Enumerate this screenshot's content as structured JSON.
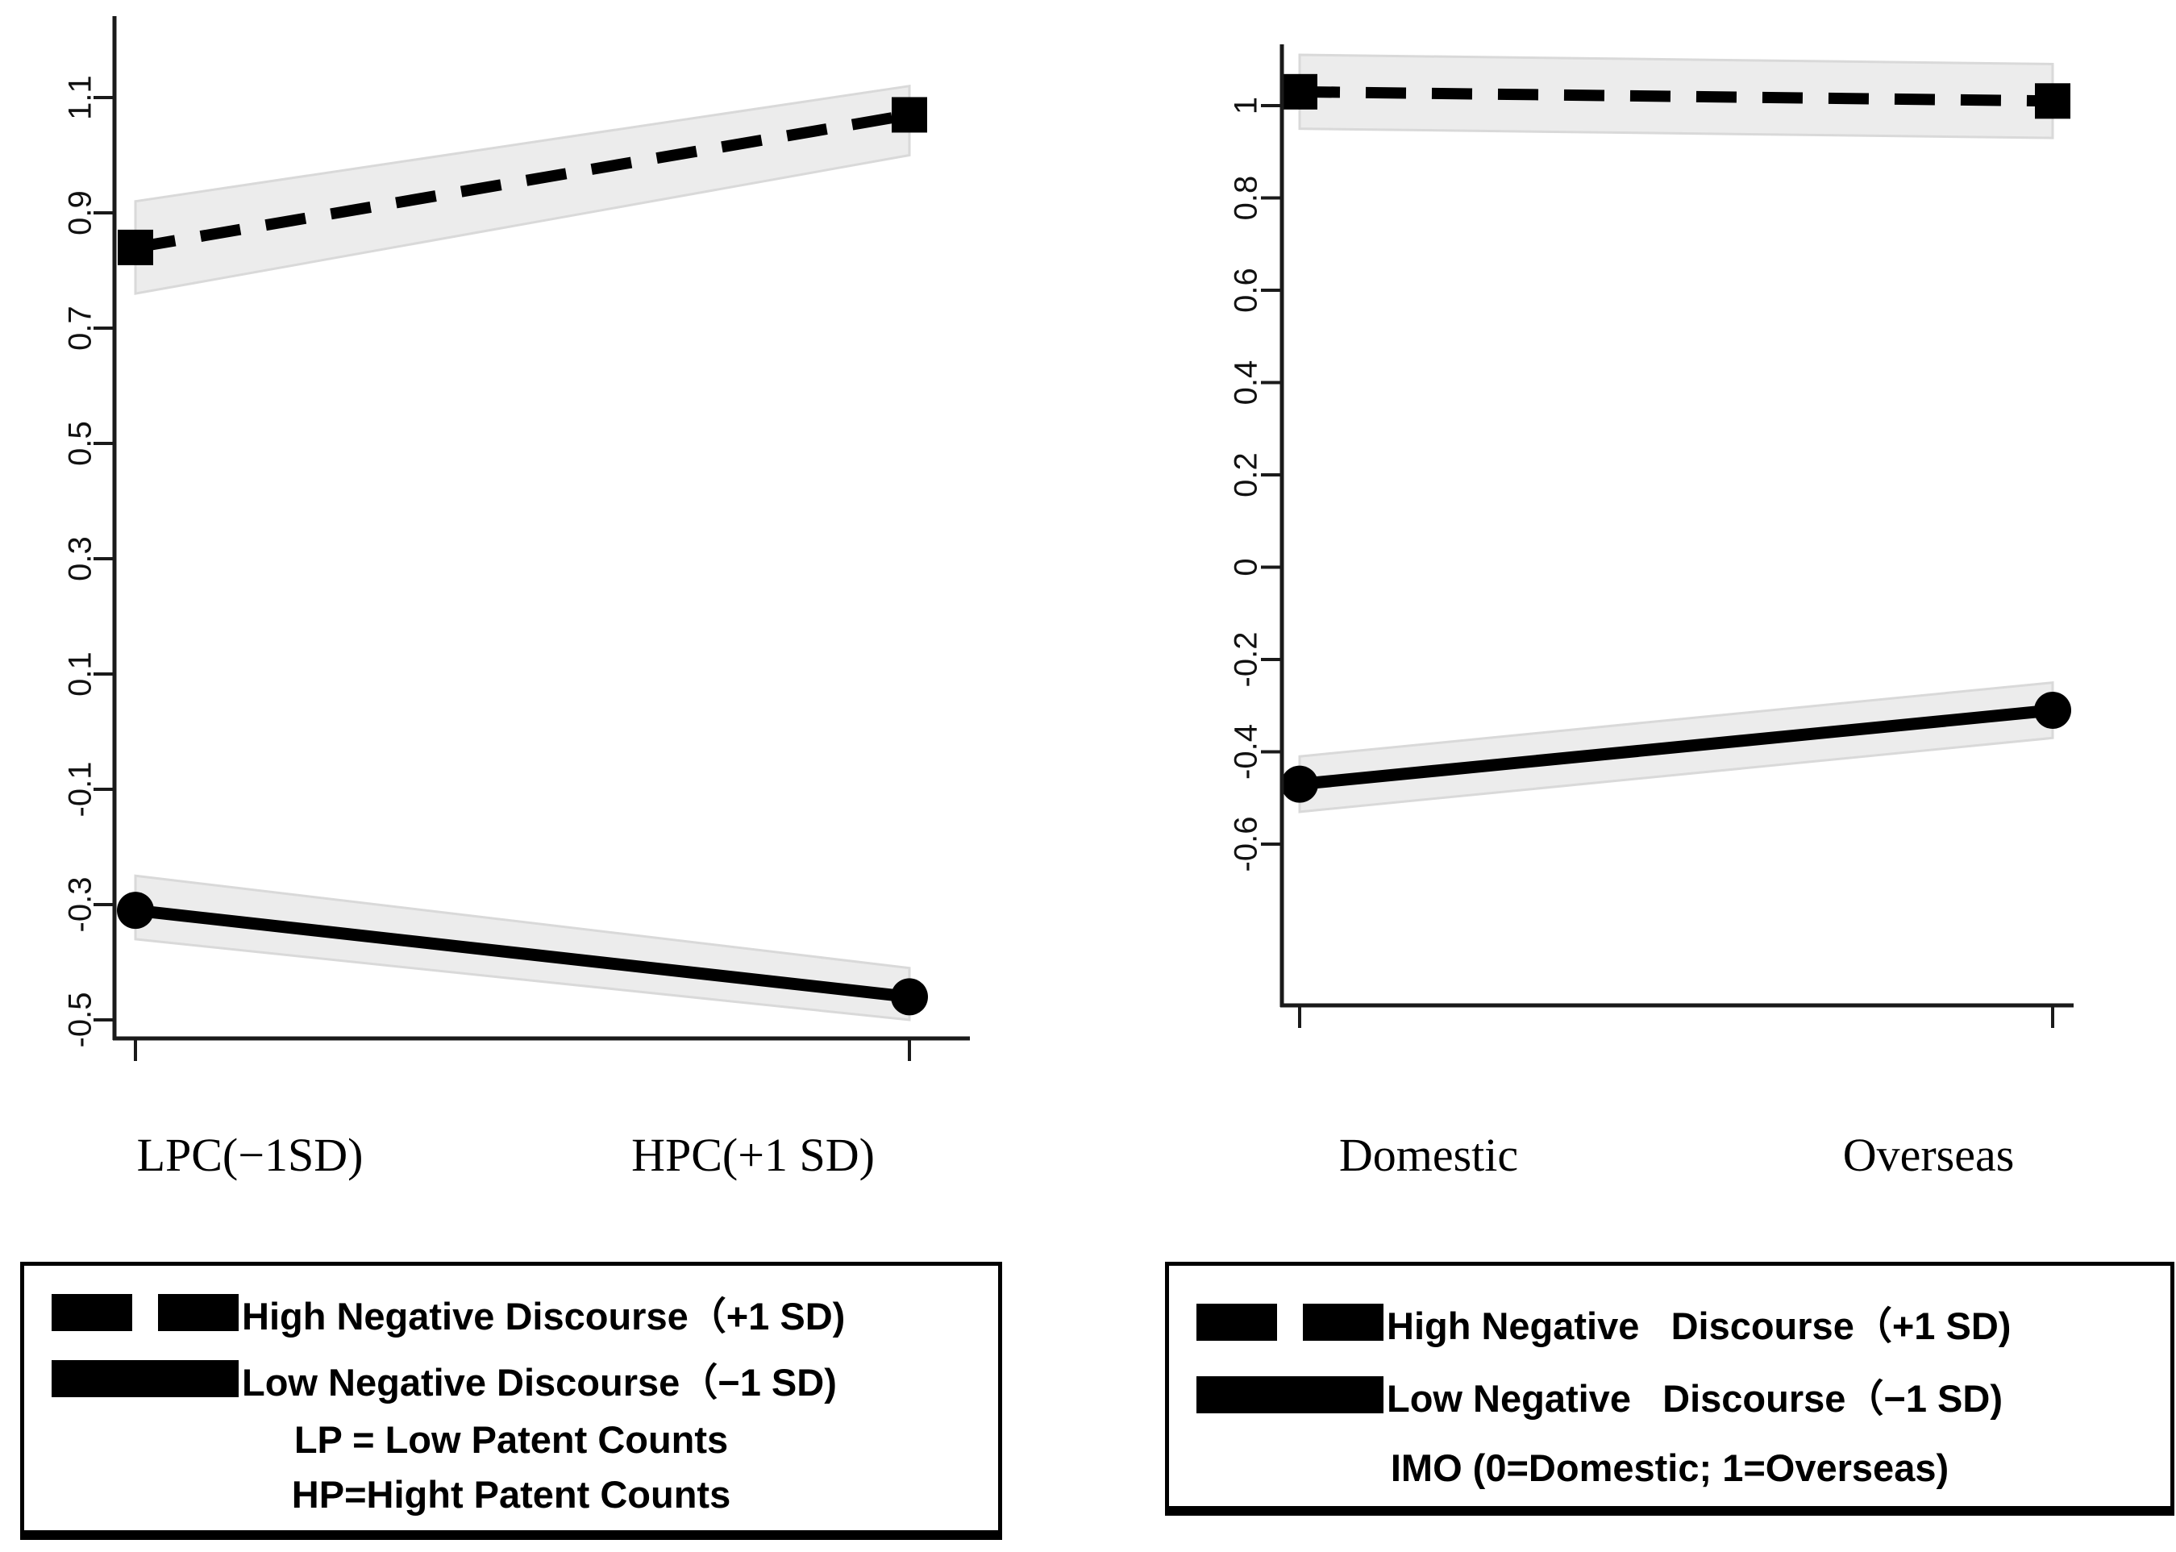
{
  "chart_data": [
    {
      "type": "line",
      "title": "",
      "categories": [
        "LPC(−1SD)",
        "HPC(+1 SD)"
      ],
      "series": [
        {
          "name": "High Negative Discourse（+1 SD)",
          "style": "dashed",
          "marker": "square",
          "values": [
            0.84,
            1.07
          ],
          "ci_low": [
            0.76,
            1.0
          ],
          "ci_high": [
            0.92,
            1.12
          ]
        },
        {
          "name": "Low Negative Discourse（−1 SD)",
          "style": "solid",
          "marker": "circle",
          "values": [
            -0.31,
            -0.46
          ],
          "ci_low": [
            -0.36,
            -0.5
          ],
          "ci_high": [
            -0.25,
            -0.41
          ]
        }
      ],
      "yticks": [
        1.1,
        0.9,
        0.7,
        0.5,
        0.3,
        0.1,
        -0.1,
        -0.3,
        -0.5
      ],
      "ylim": [
        -0.53,
        1.24
      ],
      "grid": false,
      "legend_position": "below",
      "notes": [
        "LP = Low Patent Counts",
        "HP=Hight Patent Counts"
      ]
    },
    {
      "type": "line",
      "title": "",
      "categories": [
        "Domestic",
        "Overseas"
      ],
      "series": [
        {
          "name": "High Negative   Discourse（+1 SD)",
          "style": "dashed",
          "marker": "square",
          "values": [
            1.03,
            1.01
          ],
          "ci_low": [
            0.95,
            0.93
          ],
          "ci_high": [
            1.11,
            1.09
          ]
        },
        {
          "name": "Low Negative   Discourse（−1 SD)",
          "style": "solid",
          "marker": "circle",
          "values": [
            -0.47,
            -0.31
          ],
          "ci_low": [
            -0.53,
            -0.37
          ],
          "ci_high": [
            -0.41,
            -0.25
          ]
        }
      ],
      "yticks": [
        1,
        0.8,
        0.6,
        0.4,
        0.2,
        0,
        -0.2,
        -0.4,
        -0.6
      ],
      "ylim": [
        -0.67,
        1.13
      ],
      "grid": false,
      "legend_position": "below",
      "notes": [
        "IMO (0=Domestic; 1=Overseas)"
      ]
    }
  ],
  "colors": {
    "line": "#000000",
    "ci_fill": "#ececec",
    "ci_edge": "#d9d9d9",
    "axis": "#1a1a1a"
  }
}
